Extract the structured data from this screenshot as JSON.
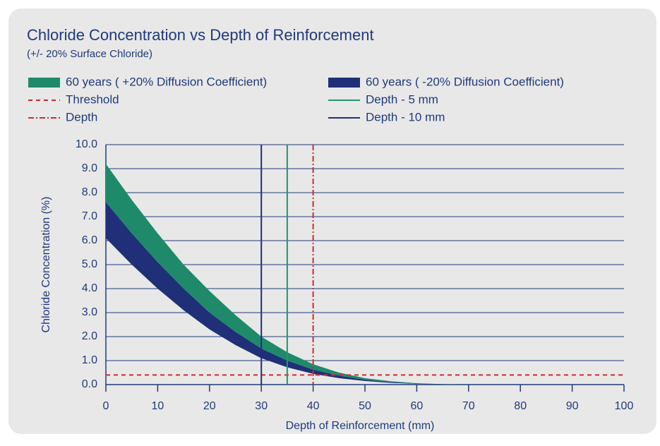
{
  "chart_data": {
    "type": "area",
    "title": "Chloride Concentration vs Depth of Reinforcement",
    "subtitle": "(+/- 20% Surface Chloride)",
    "x_label": "Depth of Reinforcement (mm)",
    "y_label": "Chloride Concentration (%)",
    "xlim": [
      0,
      100
    ],
    "xticks": [
      0,
      10,
      20,
      30,
      40,
      50,
      60,
      70,
      80,
      90,
      100
    ],
    "ylim": [
      0,
      10
    ],
    "yticks": [
      {
        "value": 0,
        "label": "0.0"
      },
      {
        "value": 1,
        "label": "1.0"
      },
      {
        "value": 2,
        "label": "2.0"
      },
      {
        "value": 3,
        "label": "3.0"
      },
      {
        "value": 4,
        "label": "4.0"
      },
      {
        "value": 5,
        "label": "5.0"
      },
      {
        "value": 6,
        "label": "6.0"
      },
      {
        "value": 7,
        "label": "7.0"
      },
      {
        "value": 8,
        "label": "8.0"
      },
      {
        "value": 9,
        "label": "9.0"
      },
      {
        "value": 10,
        "label": "10.0"
      }
    ],
    "grid": true,
    "x": [
      0,
      5,
      10,
      15,
      20,
      25,
      30,
      35,
      40,
      45,
      50,
      55,
      60,
      65,
      70
    ],
    "series": [
      {
        "name": "60 years ( +20% Diffusion Coefficient)",
        "kind": "band",
        "color": "#1e8a6a",
        "upper": [
          9.2,
          7.7,
          6.3,
          5.0,
          3.9,
          2.9,
          2.0,
          1.35,
          0.85,
          0.5,
          0.27,
          0.14,
          0.06,
          0.02,
          0
        ],
        "lower": [
          7.6,
          6.3,
          5.1,
          4.0,
          3.0,
          2.2,
          1.5,
          1.0,
          0.62,
          0.37,
          0.2,
          0.1,
          0.04,
          0.01,
          0
        ]
      },
      {
        "name": "60 years ( -20% Diffusion Coefficient)",
        "kind": "band",
        "color": "#1f2f78",
        "upper": [
          7.6,
          6.3,
          5.1,
          4.0,
          3.0,
          2.2,
          1.5,
          1.0,
          0.62,
          0.37,
          0.2,
          0.1,
          0.04,
          0.01,
          0
        ],
        "lower": [
          6.1,
          5.0,
          4.0,
          3.1,
          2.3,
          1.65,
          1.1,
          0.72,
          0.45,
          0.27,
          0.15,
          0.07,
          0.03,
          0.01,
          0
        ]
      },
      {
        "name": "Threshold",
        "kind": "hline",
        "color": "#d42a2a",
        "dash": "6,5",
        "value": 0.4
      },
      {
        "name": "Depth - 5 mm",
        "kind": "vline",
        "color": "#1e9a6a",
        "dash": "none",
        "value": 35
      },
      {
        "name": "Depth",
        "kind": "vline",
        "color": "#d42a2a",
        "dash": "8,3,2,3",
        "value": 40
      },
      {
        "name": "Depth - 10 mm",
        "kind": "vline",
        "color": "#1f2f78",
        "dash": "none",
        "value": 30
      }
    ]
  }
}
